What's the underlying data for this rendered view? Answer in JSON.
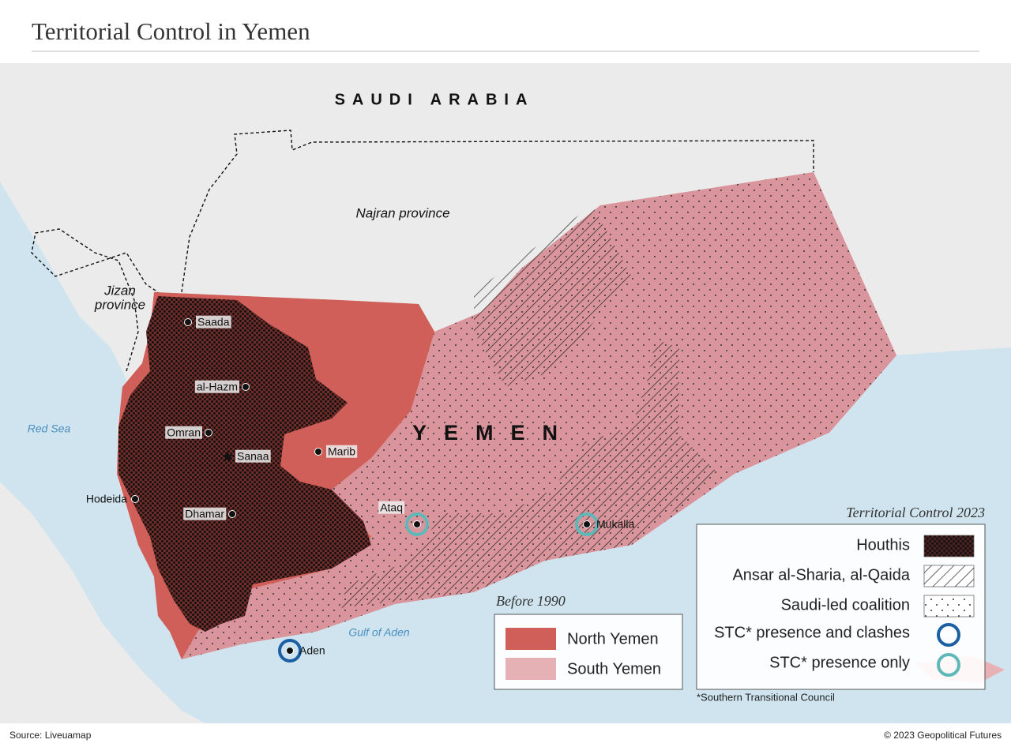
{
  "header": {
    "title": "Territorial Control in Yemen"
  },
  "map": {
    "labels": {
      "saudi_arabia": "SAUDI ARABIA",
      "najran": "Najran province",
      "jizan": [
        "Jizan",
        "province"
      ],
      "red_sea": "Red Sea",
      "yemen": "YEMEN",
      "gulf_of_aden": "Gulf of Aden"
    },
    "cities": [
      {
        "name": "Saada"
      },
      {
        "name": "al-Hazm"
      },
      {
        "name": "Omran"
      },
      {
        "name": "Sanaa"
      },
      {
        "name": "Marib"
      },
      {
        "name": "Hodeida"
      },
      {
        "name": "Dhamar"
      },
      {
        "name": "Ataq"
      },
      {
        "name": "Mukalla"
      },
      {
        "name": "Aden"
      }
    ]
  },
  "legend_before_1990": {
    "title": "Before 1990",
    "items": [
      "North Yemen",
      "South Yemen"
    ]
  },
  "legend_control": {
    "title": "Territorial Control 2023",
    "items": [
      "Houthis",
      "Ansar al-Sharia, al-Qaida",
      "Saudi-led coalition",
      "STC* presence and clashes",
      "STC* presence only"
    ],
    "note": "*Southern Transitional Council"
  },
  "footer": {
    "source": "Source: Liveuamap",
    "credit": "© 2023 Geopolitical Futures"
  }
}
